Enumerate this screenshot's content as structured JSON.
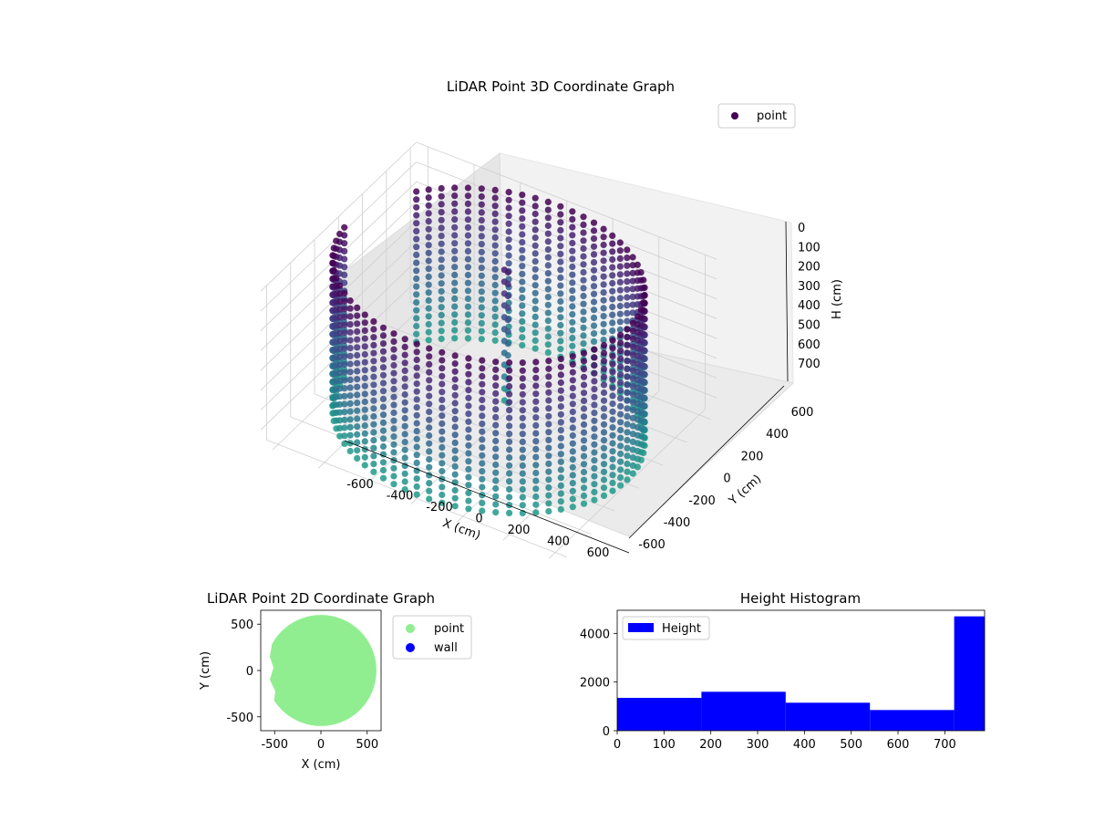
{
  "chart_data": [
    {
      "type": "scatter3d",
      "title": "LiDAR Point 3D Coordinate Graph",
      "xlabel": "X (cm)",
      "ylabel": "Y (cm)",
      "zlabel": "H (cm)",
      "x_ticks": [
        -600,
        -400,
        -200,
        0,
        200,
        400,
        600
      ],
      "y_ticks": [
        -600,
        -400,
        -200,
        0,
        200,
        400,
        600
      ],
      "z_ticks": [
        0,
        100,
        200,
        300,
        400,
        500,
        600,
        700
      ],
      "xlim": [
        -650,
        650
      ],
      "ylim": [
        -650,
        650
      ],
      "zlim": [
        780,
        0
      ],
      "z_inverted": true,
      "colormap": "viridis",
      "legend": {
        "placement": "upper-right",
        "entries": [
          {
            "name": "point",
            "color": "#440154"
          }
        ]
      },
      "description_series": {
        "cylinder_radius": 600,
        "height_range": [
          0,
          780
        ]
      }
    },
    {
      "type": "scatter",
      "title": "LiDAR Point 2D Coordinate Graph",
      "xlabel": "X (cm)",
      "ylabel": "Y (cm)",
      "x_ticks": [
        -500,
        0,
        500
      ],
      "y_ticks": [
        -500,
        0,
        500
      ],
      "xlim": [
        -650,
        650
      ],
      "ylim": [
        -650,
        650
      ],
      "series": [
        {
          "name": "point",
          "color": "#90ee90",
          "shape": "filled disk radius 600 centered at (0,0)"
        },
        {
          "name": "wall",
          "color": "#0000ff"
        }
      ],
      "legend": {
        "placement": "outside-right-top"
      }
    },
    {
      "type": "bar",
      "title": "Height Histogram",
      "xlabel": "",
      "ylabel": "",
      "legend": {
        "placement": "top-left",
        "entries": [
          {
            "name": "Height",
            "color": "#0000ff"
          }
        ]
      },
      "x_ticks": [
        0,
        100,
        200,
        300,
        400,
        500,
        600,
        700
      ],
      "y_ticks": [
        0,
        2000,
        4000
      ],
      "xlim": [
        0,
        785
      ],
      "ylim": [
        0,
        4950
      ],
      "bin_edges": [
        0,
        180,
        360,
        540,
        720,
        785
      ],
      "values": [
        1350,
        1600,
        1150,
        850,
        4700
      ],
      "color": "#0000ff"
    }
  ]
}
